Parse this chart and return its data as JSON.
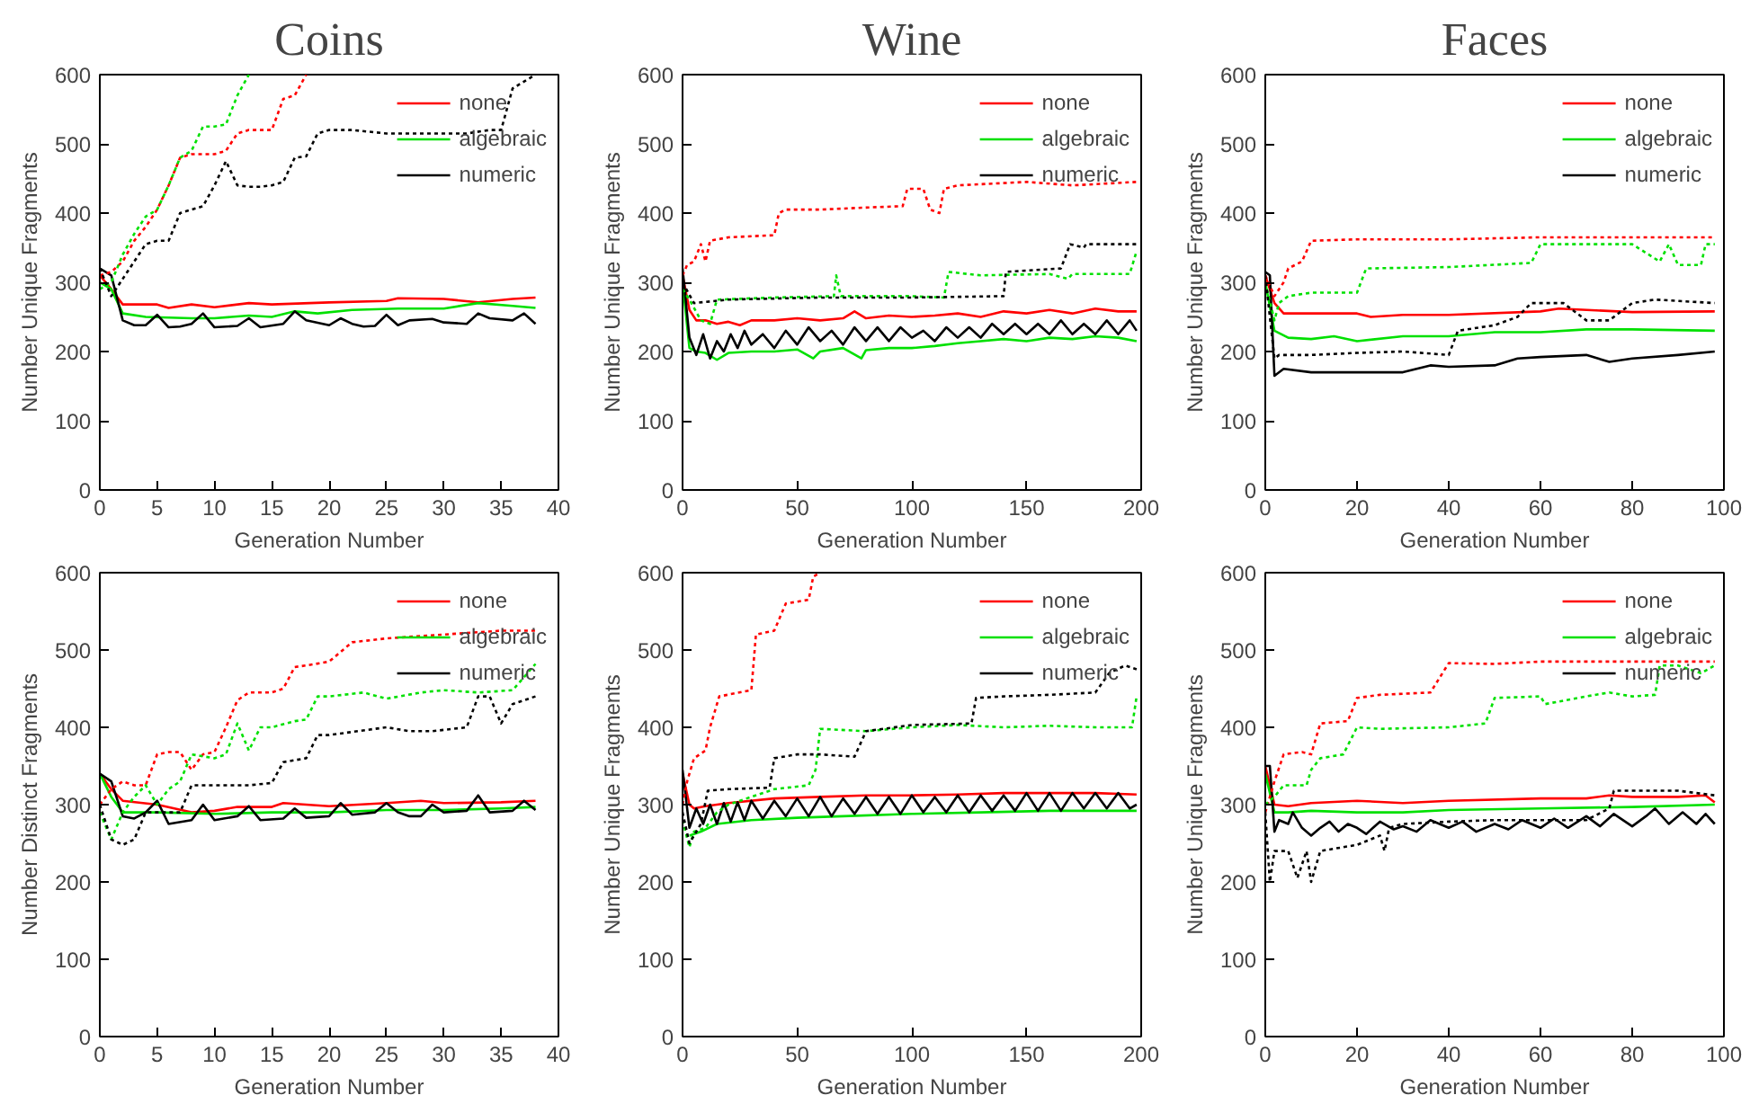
{
  "chart_data": [
    {
      "type": "line",
      "title": "Coins",
      "xlabel": "Generation Number",
      "ylabel": "Number Unique Fragments",
      "xlim": [
        0,
        40
      ],
      "xticks": [
        0,
        5,
        10,
        15,
        20,
        25,
        30,
        35,
        40
      ],
      "ylim": [
        0,
        600
      ],
      "yticks": [
        0,
        100,
        200,
        300,
        400,
        500,
        600
      ],
      "legend": "top right",
      "series": [
        {
          "name": "none",
          "color": "#ff0000",
          "line_style": "solid",
          "x": [
            0,
            1,
            2,
            5,
            6,
            8,
            10,
            13,
            15,
            20,
            25,
            26,
            30,
            33,
            36,
            38
          ],
          "values": [
            310,
            290,
            268,
            268,
            263,
            268,
            264,
            270,
            268,
            271,
            273,
            277,
            276,
            271,
            276,
            278
          ]
        },
        {
          "name": "algebraic",
          "color": "#00e000",
          "line_style": "solid",
          "x": [
            0,
            1,
            2,
            4,
            8,
            10,
            13,
            15,
            17,
            19,
            22,
            26,
            30,
            33,
            36,
            38
          ],
          "values": [
            300,
            290,
            255,
            250,
            248,
            248,
            252,
            250,
            258,
            255,
            260,
            262,
            262,
            270,
            266,
            263
          ]
        },
        {
          "name": "numeric",
          "color": "#000000",
          "line_style": "solid",
          "x": [
            0,
            1,
            2,
            3,
            4,
            5,
            6,
            7,
            8,
            9,
            10,
            12,
            13,
            14,
            16,
            17,
            18,
            20,
            21,
            22,
            23,
            24,
            25,
            26,
            27,
            29,
            30,
            32,
            33,
            34,
            36,
            37,
            38
          ],
          "values": [
            320,
            310,
            245,
            238,
            238,
            253,
            235,
            236,
            240,
            255,
            235,
            237,
            248,
            235,
            240,
            258,
            245,
            238,
            248,
            240,
            236,
            237,
            253,
            238,
            245,
            247,
            242,
            240,
            255,
            248,
            245,
            255,
            240
          ]
        },
        {
          "color": "#ff0000",
          "line_style": "dotted",
          "x": [
            0,
            1,
            2,
            3,
            4,
            5,
            6,
            7,
            8,
            9,
            10,
            11,
            12,
            13,
            14,
            15,
            16,
            17,
            18
          ],
          "values": [
            310,
            315,
            330,
            360,
            380,
            405,
            440,
            480,
            485,
            485,
            485,
            490,
            515,
            520,
            520,
            520,
            565,
            570,
            600
          ]
        },
        {
          "color": "#00e000",
          "line_style": "dotted",
          "x": [
            0,
            1,
            2,
            3,
            4,
            5,
            6,
            7,
            8,
            9,
            10,
            11,
            12,
            13
          ],
          "values": [
            290,
            300,
            340,
            370,
            395,
            405,
            440,
            480,
            490,
            525,
            525,
            528,
            570,
            600
          ]
        },
        {
          "color": "#000000",
          "line_style": "dotted",
          "x": [
            0,
            1,
            2,
            3,
            4,
            5,
            6,
            7,
            8,
            9,
            10,
            11,
            12,
            13,
            14,
            15,
            16,
            17,
            18,
            19,
            20,
            22,
            25,
            30,
            32,
            34,
            35,
            36,
            38
          ],
          "values": [
            320,
            280,
            305,
            330,
            355,
            360,
            360,
            400,
            405,
            410,
            440,
            475,
            440,
            438,
            438,
            440,
            445,
            480,
            482,
            515,
            520,
            520,
            515,
            515,
            515,
            520,
            520,
            580,
            600
          ]
        }
      ]
    },
    {
      "type": "line",
      "title": "Wine",
      "xlabel": "Generation Number",
      "ylabel": "Number Unique Fragments",
      "xlim": [
        0,
        200
      ],
      "xticks": [
        0,
        50,
        100,
        150,
        200
      ],
      "ylim": [
        0,
        600
      ],
      "yticks": [
        0,
        100,
        200,
        300,
        400,
        500,
        600
      ],
      "legend": "top right",
      "series": [
        {
          "name": "none",
          "color": "#ff0000",
          "line_style": "solid",
          "x": [
            0,
            3,
            6,
            10,
            15,
            20,
            25,
            30,
            40,
            50,
            60,
            70,
            75,
            80,
            90,
            100,
            110,
            120,
            130,
            140,
            150,
            160,
            170,
            180,
            190,
            198
          ],
          "values": [
            310,
            260,
            245,
            245,
            240,
            243,
            238,
            245,
            245,
            248,
            245,
            248,
            258,
            248,
            252,
            250,
            252,
            255,
            250,
            258,
            255,
            260,
            255,
            262,
            258,
            258
          ]
        },
        {
          "name": "algebraic",
          "color": "#00e000",
          "line_style": "solid",
          "x": [
            0,
            3,
            6,
            10,
            15,
            20,
            30,
            40,
            50,
            57,
            60,
            70,
            78,
            80,
            90,
            100,
            110,
            120,
            130,
            140,
            150,
            160,
            170,
            180,
            190,
            198
          ],
          "values": [
            300,
            205,
            200,
            198,
            188,
            198,
            200,
            200,
            203,
            190,
            200,
            205,
            190,
            202,
            205,
            205,
            208,
            212,
            215,
            218,
            215,
            220,
            218,
            222,
            220,
            215
          ]
        },
        {
          "name": "numeric",
          "color": "#000000",
          "line_style": "solid",
          "x": [
            0,
            3,
            6,
            9,
            12,
            15,
            18,
            21,
            24,
            27,
            30,
            35,
            40,
            45,
            50,
            55,
            60,
            65,
            70,
            75,
            80,
            85,
            90,
            95,
            100,
            105,
            110,
            115,
            120,
            125,
            130,
            135,
            140,
            145,
            150,
            155,
            160,
            165,
            170,
            175,
            180,
            185,
            190,
            195,
            198
          ],
          "values": [
            320,
            220,
            195,
            225,
            190,
            215,
            200,
            225,
            205,
            230,
            210,
            225,
            205,
            230,
            210,
            235,
            215,
            230,
            210,
            235,
            215,
            235,
            215,
            235,
            220,
            230,
            215,
            235,
            220,
            235,
            220,
            240,
            225,
            240,
            225,
            240,
            225,
            245,
            225,
            240,
            225,
            245,
            225,
            245,
            230
          ]
        },
        {
          "color": "#ff0000",
          "line_style": "dotted",
          "x": [
            0,
            2,
            5,
            8,
            10,
            12,
            20,
            40,
            42,
            45,
            60,
            80,
            96,
            98,
            105,
            108,
            112,
            114,
            120,
            150,
            170,
            198
          ],
          "values": [
            310,
            325,
            330,
            355,
            330,
            360,
            365,
            368,
            400,
            405,
            405,
            408,
            410,
            435,
            435,
            405,
            400,
            435,
            440,
            445,
            440,
            445
          ]
        },
        {
          "color": "#00e000",
          "line_style": "dotted",
          "x": [
            0,
            3,
            8,
            12,
            15,
            40,
            66,
            67,
            69,
            100,
            114,
            116,
            130,
            160,
            168,
            170,
            195,
            198
          ],
          "values": [
            290,
            275,
            245,
            240,
            275,
            278,
            280,
            310,
            280,
            280,
            278,
            315,
            310,
            312,
            305,
            312,
            312,
            345
          ]
        },
        {
          "color": "#000000",
          "line_style": "dotted",
          "x": [
            0,
            5,
            20,
            60,
            100,
            140,
            141,
            165,
            169,
            175,
            176,
            198
          ],
          "values": [
            300,
            270,
            275,
            278,
            278,
            280,
            315,
            320,
            355,
            350,
            355,
            355
          ]
        }
      ]
    },
    {
      "type": "line",
      "title": "Faces",
      "xlabel": "Generation Number",
      "ylabel": "Number Unique Fragments",
      "xlim": [
        0,
        100
      ],
      "xticks": [
        0,
        20,
        40,
        60,
        80,
        100
      ],
      "ylim": [
        0,
        600
      ],
      "yticks": [
        0,
        100,
        200,
        300,
        400,
        500,
        600
      ],
      "legend": "top right",
      "series": [
        {
          "name": "none",
          "color": "#ff0000",
          "line_style": "solid",
          "x": [
            0,
            2,
            4,
            10,
            20,
            23,
            30,
            40,
            60,
            64,
            80,
            98
          ],
          "values": [
            310,
            270,
            255,
            255,
            255,
            250,
            253,
            253,
            258,
            262,
            257,
            258
          ]
        },
        {
          "name": "algebraic",
          "color": "#00e000",
          "line_style": "solid",
          "x": [
            0,
            2,
            5,
            10,
            15,
            20,
            30,
            40,
            50,
            60,
            70,
            80,
            98
          ],
          "values": [
            300,
            230,
            220,
            218,
            222,
            215,
            222,
            222,
            228,
            228,
            232,
            232,
            230
          ]
        },
        {
          "name": "numeric",
          "color": "#000000",
          "line_style": "solid",
          "x": [
            0,
            1,
            2,
            4,
            10,
            20,
            30,
            36,
            40,
            50,
            55,
            60,
            70,
            75,
            80,
            90,
            98
          ],
          "values": [
            315,
            310,
            165,
            175,
            170,
            170,
            170,
            180,
            178,
            180,
            190,
            192,
            195,
            185,
            190,
            195,
            200
          ]
        },
        {
          "color": "#ff0000",
          "line_style": "dotted",
          "x": [
            0,
            2,
            4,
            5,
            8,
            10,
            20,
            40,
            60,
            80,
            98
          ],
          "values": [
            310,
            280,
            300,
            320,
            330,
            360,
            362,
            362,
            365,
            365,
            365
          ]
        },
        {
          "color": "#00e000",
          "line_style": "dotted",
          "x": [
            0,
            2,
            3,
            5,
            10,
            20,
            22,
            40,
            58,
            60,
            80,
            86,
            88,
            90,
            95,
            96,
            98
          ],
          "values": [
            300,
            245,
            270,
            280,
            285,
            285,
            320,
            322,
            328,
            355,
            355,
            330,
            355,
            325,
            325,
            355,
            355
          ]
        },
        {
          "color": "#000000",
          "line_style": "dotted",
          "x": [
            0,
            2,
            3,
            10,
            20,
            30,
            40,
            42,
            50,
            55,
            58,
            65,
            70,
            75,
            78,
            80,
            85,
            98
          ],
          "values": [
            310,
            190,
            195,
            195,
            198,
            200,
            195,
            230,
            238,
            250,
            270,
            270,
            245,
            245,
            260,
            270,
            275,
            270
          ]
        }
      ]
    },
    {
      "type": "line",
      "xlabel": "Generation Number",
      "ylabel": "Number Distinct Fragments",
      "xlim": [
        0,
        40
      ],
      "xticks": [
        0,
        5,
        10,
        15,
        20,
        25,
        30,
        35,
        40
      ],
      "ylim": [
        0,
        600
      ],
      "yticks": [
        0,
        100,
        200,
        300,
        400,
        500,
        600
      ],
      "legend": "top right",
      "series": [
        {
          "name": "none",
          "color": "#ff0000",
          "line_style": "solid",
          "x": [
            0,
            1,
            2,
            5,
            8,
            10,
            12,
            15,
            16,
            20,
            25,
            28,
            30,
            35,
            38
          ],
          "values": [
            340,
            320,
            305,
            300,
            290,
            292,
            297,
            297,
            302,
            298,
            302,
            305,
            302,
            303,
            305
          ]
        },
        {
          "name": "algebraic",
          "color": "#00e000",
          "line_style": "solid",
          "x": [
            0,
            1,
            2,
            5,
            10,
            15,
            20,
            25,
            30,
            35,
            38
          ],
          "values": [
            340,
            310,
            290,
            290,
            288,
            290,
            290,
            293,
            293,
            295,
            297
          ]
        },
        {
          "name": "numeric",
          "color": "#000000",
          "line_style": "solid",
          "x": [
            0,
            1,
            2,
            3,
            4,
            5,
            6,
            8,
            9,
            10,
            12,
            13,
            14,
            16,
            17,
            18,
            20,
            21,
            22,
            24,
            25,
            26,
            27,
            28,
            29,
            30,
            32,
            33,
            34,
            36,
            37,
            38
          ],
          "values": [
            340,
            330,
            285,
            282,
            290,
            305,
            275,
            280,
            300,
            280,
            285,
            298,
            280,
            282,
            295,
            283,
            285,
            302,
            287,
            290,
            302,
            290,
            285,
            285,
            300,
            290,
            292,
            312,
            290,
            292,
            305,
            293
          ]
        },
        {
          "color": "#ff0000",
          "line_style": "dotted",
          "x": [
            0,
            1,
            2,
            3,
            4,
            5,
            6,
            7,
            8,
            9,
            10,
            11,
            12,
            13,
            15,
            16,
            17,
            18,
            20,
            22,
            25,
            30,
            35,
            38
          ],
          "values": [
            300,
            320,
            330,
            325,
            325,
            365,
            368,
            368,
            345,
            365,
            368,
            400,
            435,
            445,
            445,
            450,
            478,
            480,
            485,
            510,
            515,
            520,
            525,
            525
          ]
        },
        {
          "color": "#00e000",
          "line_style": "dotted",
          "x": [
            0,
            1,
            2,
            3,
            4,
            5,
            6,
            7,
            8,
            10,
            11,
            12,
            13,
            14,
            15,
            17,
            18,
            19,
            20,
            23,
            25,
            28,
            30,
            33,
            36,
            38
          ],
          "values": [
            290,
            255,
            290,
            310,
            325,
            300,
            320,
            330,
            365,
            360,
            365,
            405,
            370,
            400,
            400,
            408,
            410,
            440,
            440,
            445,
            437,
            445,
            448,
            445,
            448,
            482
          ]
        },
        {
          "color": "#000000",
          "line_style": "dotted",
          "x": [
            0,
            1,
            2,
            3,
            4,
            5,
            6,
            7,
            8,
            10,
            13,
            15,
            16,
            18,
            19,
            20,
            25,
            27,
            29,
            32,
            33,
            34,
            35,
            36,
            38
          ],
          "values": [
            300,
            255,
            248,
            255,
            290,
            290,
            290,
            290,
            325,
            325,
            325,
            328,
            355,
            360,
            390,
            390,
            400,
            395,
            395,
            400,
            440,
            440,
            405,
            430,
            440
          ]
        }
      ]
    },
    {
      "type": "line",
      "xlabel": "Generation Number",
      "ylabel": "Number Unique Fragments",
      "xlim": [
        0,
        200
      ],
      "xticks": [
        0,
        50,
        100,
        150,
        200
      ],
      "ylim": [
        0,
        600
      ],
      "yticks": [
        0,
        100,
        200,
        300,
        400,
        500,
        600
      ],
      "legend": "top right",
      "series": [
        {
          "name": "none",
          "color": "#ff0000",
          "line_style": "solid",
          "x": [
            0,
            3,
            5,
            10,
            20,
            40,
            60,
            80,
            100,
            120,
            140,
            160,
            180,
            198
          ],
          "values": [
            340,
            300,
            295,
            298,
            302,
            308,
            310,
            312,
            312,
            313,
            315,
            315,
            315,
            313
          ]
        },
        {
          "name": "algebraic",
          "color": "#00e000",
          "line_style": "solid",
          "x": [
            3,
            8,
            15,
            30,
            50,
            70,
            100,
            130,
            160,
            198
          ],
          "values": [
            260,
            265,
            275,
            280,
            283,
            285,
            288,
            290,
            292,
            292
          ]
        },
        {
          "name": "numeric",
          "color": "#000000",
          "line_style": "solid",
          "x": [
            0,
            3,
            6,
            9,
            12,
            15,
            18,
            21,
            24,
            27,
            30,
            35,
            40,
            45,
            50,
            55,
            60,
            65,
            70,
            75,
            80,
            85,
            90,
            95,
            100,
            105,
            110,
            115,
            120,
            125,
            130,
            135,
            140,
            145,
            150,
            155,
            160,
            165,
            170,
            175,
            180,
            185,
            190,
            195,
            198
          ],
          "values": [
            345,
            270,
            295,
            275,
            300,
            275,
            302,
            278,
            303,
            280,
            305,
            282,
            305,
            285,
            308,
            285,
            310,
            285,
            308,
            288,
            310,
            288,
            310,
            288,
            312,
            290,
            310,
            290,
            312,
            290,
            312,
            292,
            312,
            292,
            315,
            292,
            315,
            292,
            315,
            295,
            315,
            295,
            315,
            295,
            300
          ]
        },
        {
          "color": "#ff0000",
          "line_style": "dotted",
          "x": [
            0,
            2,
            5,
            10,
            12,
            16,
            30,
            32,
            40,
            45,
            55,
            57,
            60
          ],
          "values": [
            300,
            330,
            360,
            370,
            400,
            440,
            448,
            520,
            525,
            560,
            565,
            595,
            600
          ]
        },
        {
          "color": "#00e000",
          "line_style": "dotted",
          "x": [
            0,
            3,
            5,
            10,
            15,
            20,
            40,
            55,
            58,
            60,
            80,
            100,
            120,
            140,
            160,
            180,
            196,
            198
          ],
          "values": [
            280,
            245,
            265,
            270,
            290,
            300,
            320,
            325,
            345,
            398,
            395,
            400,
            403,
            400,
            402,
            400,
            400,
            440
          ]
        },
        {
          "color": "#000000",
          "line_style": "dotted",
          "x": [
            0,
            3,
            8,
            11,
            20,
            38,
            40,
            50,
            60,
            75,
            80,
            100,
            126,
            128,
            140,
            160,
            180,
            186,
            193,
            198
          ],
          "values": [
            290,
            250,
            275,
            318,
            320,
            322,
            360,
            365,
            365,
            362,
            395,
            403,
            405,
            438,
            440,
            442,
            445,
            470,
            480,
            475
          ]
        }
      ]
    },
    {
      "type": "line",
      "xlabel": "Generation Number",
      "ylabel": "Number Unique Fragments",
      "xlim": [
        0,
        100
      ],
      "xticks": [
        0,
        20,
        40,
        60,
        80,
        100
      ],
      "ylim": [
        0,
        600
      ],
      "yticks": [
        0,
        100,
        200,
        300,
        400,
        500,
        600
      ],
      "legend": "top right",
      "series": [
        {
          "name": "none",
          "color": "#ff0000",
          "line_style": "solid",
          "x": [
            0,
            2,
            5,
            10,
            20,
            30,
            40,
            60,
            70,
            75,
            80,
            90,
            96,
            98
          ],
          "values": [
            350,
            300,
            298,
            302,
            305,
            302,
            305,
            308,
            308,
            312,
            310,
            310,
            312,
            303
          ]
        },
        {
          "name": "algebraic",
          "color": "#00e000",
          "line_style": "solid",
          "x": [
            0,
            2,
            5,
            10,
            20,
            30,
            40,
            60,
            80,
            98
          ],
          "values": [
            340,
            290,
            290,
            292,
            290,
            290,
            293,
            295,
            297,
            300
          ]
        },
        {
          "name": "numeric",
          "color": "#000000",
          "line_style": "solid",
          "x": [
            0,
            1,
            2,
            3,
            5,
            6,
            8,
            10,
            12,
            14,
            16,
            18,
            20,
            22,
            25,
            28,
            30,
            33,
            36,
            40,
            43,
            46,
            50,
            53,
            56,
            60,
            63,
            66,
            70,
            73,
            76,
            80,
            83,
            85,
            88,
            91,
            94,
            96,
            98
          ],
          "values": [
            350,
            350,
            265,
            280,
            275,
            290,
            270,
            260,
            270,
            278,
            265,
            275,
            270,
            262,
            278,
            268,
            272,
            265,
            280,
            270,
            278,
            265,
            275,
            268,
            280,
            270,
            282,
            270,
            285,
            272,
            288,
            272,
            285,
            295,
            275,
            290,
            275,
            288,
            275
          ]
        },
        {
          "color": "#ff0000",
          "line_style": "dotted",
          "x": [
            0,
            2,
            4,
            8,
            10,
            12,
            18,
            20,
            25,
            36,
            40,
            50,
            60,
            98
          ],
          "values": [
            290,
            330,
            365,
            368,
            365,
            405,
            408,
            438,
            442,
            445,
            483,
            482,
            485,
            485
          ]
        },
        {
          "color": "#00e000",
          "line_style": "dotted",
          "x": [
            0,
            2,
            4,
            9,
            10,
            12,
            17,
            20,
            25,
            40,
            48,
            50,
            60,
            61,
            70,
            75,
            80,
            85,
            86,
            90,
            95,
            98
          ],
          "values": [
            300,
            310,
            325,
            325,
            345,
            360,
            365,
            400,
            398,
            400,
            405,
            438,
            440,
            430,
            440,
            445,
            440,
            442,
            480,
            480,
            470,
            480
          ]
        },
        {
          "color": "#000000",
          "line_style": "dotted",
          "x": [
            0,
            1,
            2,
            5,
            7,
            9,
            10,
            12,
            20,
            25,
            26,
            27,
            30,
            40,
            50,
            60,
            70,
            75,
            76,
            90,
            98
          ],
          "values": [
            290,
            200,
            240,
            240,
            205,
            240,
            200,
            240,
            248,
            260,
            240,
            270,
            275,
            278,
            280,
            280,
            280,
            295,
            318,
            318,
            312
          ]
        }
      ]
    }
  ]
}
